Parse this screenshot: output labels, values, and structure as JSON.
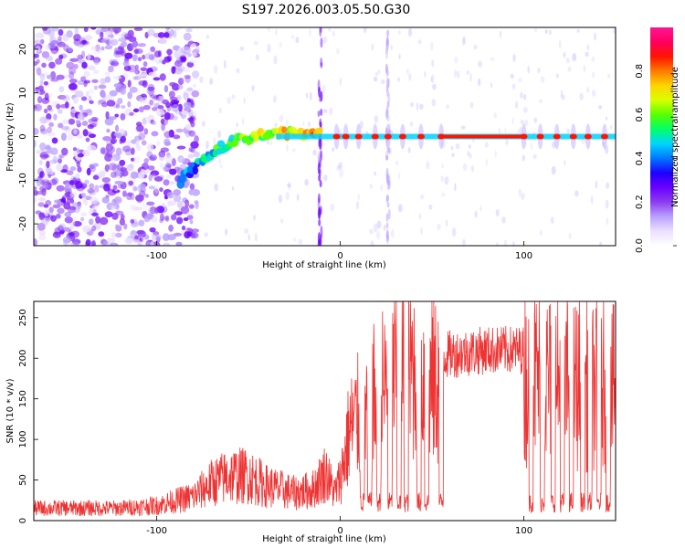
{
  "figure": {
    "title": "S197.2026.003.05.50.G30"
  },
  "chart_data": [
    {
      "type": "heatmap",
      "title": "S197.2026.003.05.50.G30",
      "xlabel": "Height of straight line (km)",
      "ylabel": "Frequency (Hz)",
      "xlim": [
        -167,
        150
      ],
      "ylim": [
        -25,
        25
      ],
      "xticks": [
        -100,
        0,
        100
      ],
      "yticks": [
        -20,
        -10,
        0,
        10,
        20
      ],
      "colorbar": {
        "label": "Normalized spectral amplitude",
        "range": [
          0,
          1
        ],
        "ticks": [
          "0.0",
          "0.2",
          "0.4",
          "0.6",
          "0.8"
        ],
        "colors": [
          "#ffffff",
          "#ece0ff",
          "#b9a1ff",
          "#8c3cf0",
          "#6a00ff",
          "#1d00ff",
          "#0077ff",
          "#00d4ff",
          "#00ff6a",
          "#58ff00",
          "#d9ff00",
          "#ffd400",
          "#ff7a00",
          "#ff1400",
          "#ff0060",
          "#ff1493"
        ]
      },
      "line_frequency_hz": 0,
      "tone_blobs_x": [
        -2,
        3,
        10,
        19,
        26,
        34,
        44,
        55,
        100,
        109,
        118,
        127,
        135,
        144
      ],
      "drift": [
        [
          -87,
          -10
        ],
        [
          -77,
          -6
        ],
        [
          -67,
          -3
        ],
        [
          -57,
          -1
        ],
        [
          -47,
          0
        ],
        [
          -35,
          0.5
        ],
        [
          -20,
          0.6
        ],
        [
          -10,
          0.4
        ]
      ],
      "vertical_streaks_x": [
        -11,
        26
      ]
    },
    {
      "type": "line",
      "title": "",
      "xlabel": "Height of straight line (km)",
      "ylabel": "SNR (10 * v/v)",
      "xlim": [
        -167,
        150
      ],
      "ylim": [
        0,
        270
      ],
      "xticks": [
        -100,
        0,
        100
      ],
      "yticks": [
        0,
        50,
        100,
        150,
        200,
        250
      ],
      "series": [
        {
          "name": "SNR",
          "color": "#ee3333",
          "envelope": [
            [
              -167,
              18
            ],
            [
              -120,
              18
            ],
            [
              -100,
              22
            ],
            [
              -80,
              35
            ],
            [
              -70,
              55
            ],
            [
              -60,
              65
            ],
            [
              -50,
              65
            ],
            [
              -40,
              50
            ],
            [
              -25,
              40
            ],
            [
              -15,
              45
            ],
            [
              -8,
              70
            ],
            [
              -3,
              40
            ],
            [
              0,
              60
            ],
            [
              5,
              130
            ],
            [
              10,
              150
            ],
            [
              20,
              180
            ],
            [
              30,
              210
            ],
            [
              40,
              220
            ],
            [
              50,
              200
            ],
            [
              60,
              205
            ],
            [
              80,
              210
            ],
            [
              100,
              210
            ],
            [
              120,
              200
            ],
            [
              140,
              195
            ],
            [
              150,
              190
            ]
          ],
          "dropouts_x": [
            12,
            16,
            21,
            27,
            32,
            36,
            43,
            47,
            55,
            104,
            110,
            116,
            121,
            126,
            132,
            136,
            141,
            146
          ],
          "dropout_floor": 10
        }
      ]
    }
  ]
}
